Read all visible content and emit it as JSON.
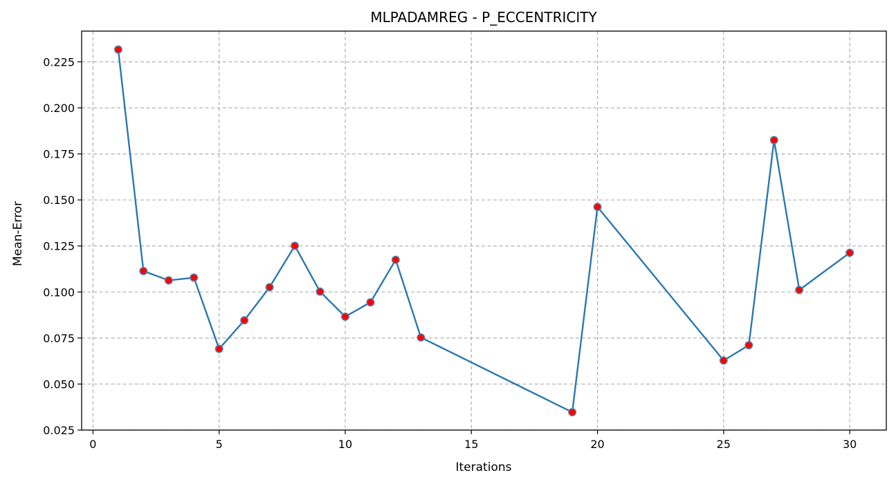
{
  "chart_data": {
    "type": "line",
    "title": "MLPADAMREG - P_ECCENTRICITY",
    "xlabel": "Iterations",
    "ylabel": "Mean-Error",
    "xlim": [
      -0.45,
      31.45
    ],
    "ylim": [
      0.025,
      0.2417
    ],
    "xticks": [
      0,
      5,
      10,
      15,
      20,
      25,
      30
    ],
    "xtick_labels": [
      "0",
      "5",
      "10",
      "15",
      "20",
      "25",
      "30"
    ],
    "yticks": [
      0.025,
      0.05,
      0.075,
      0.1,
      0.125,
      0.15,
      0.175,
      0.2,
      0.225
    ],
    "ytick_labels": [
      "0.025",
      "0.050",
      "0.075",
      "0.100",
      "0.125",
      "0.150",
      "0.175",
      "0.200",
      "0.225"
    ],
    "grid": true,
    "series": [
      {
        "line_color": "#2a78ae",
        "marker_face": "#ff0000",
        "marker_edge": "#5a7fa8",
        "x": [
          1,
          2,
          3,
          4,
          5,
          6,
          7,
          8,
          9,
          10,
          11,
          12,
          13,
          19,
          20,
          25,
          26,
          27,
          28,
          30
        ],
        "y": [
          0.2317,
          0.1114,
          0.1063,
          0.1078,
          0.0691,
          0.0846,
          0.1026,
          0.1251,
          0.1002,
          0.0866,
          0.0944,
          0.1175,
          0.0753,
          0.0347,
          0.1462,
          0.0628,
          0.0711,
          0.1825,
          0.1011,
          0.1213
        ]
      }
    ]
  }
}
